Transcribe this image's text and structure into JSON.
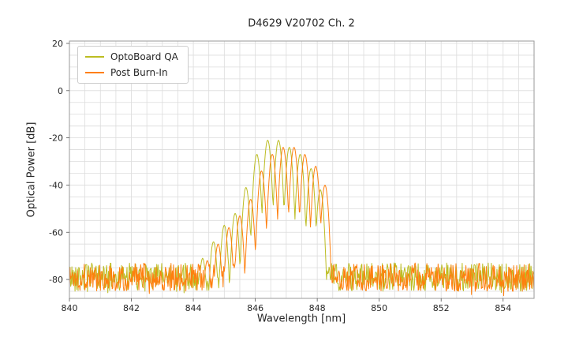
{
  "chart_data": {
    "type": "line",
    "title": "D4629 V20702 Ch. 2",
    "xlabel": "Wavelength [nm]",
    "ylabel": "Optical Power [dB]",
    "xlim": [
      840,
      855
    ],
    "ylim": [
      -88,
      21
    ],
    "x_ticks": [
      840,
      842,
      844,
      846,
      848,
      850,
      852,
      854
    ],
    "y_ticks": [
      20,
      0,
      -20,
      -40,
      -60,
      -80
    ],
    "grid": {
      "on": true,
      "x_step_nm": 0.5,
      "y_step_db": 5
    },
    "legend": {
      "position": "upper left",
      "entries": [
        "OptoBoard QA",
        "Post Burn-In"
      ]
    },
    "sample_step_nm": 0.02,
    "lobe_format": "[center_nm, peak_db]",
    "series": [
      {
        "name": "OptoBoard QA",
        "color": "#bcbd22",
        "seed": 42,
        "noise_floor_db": -79,
        "noise_band_db": 12,
        "lobe_sharpness_db_per_nm2": 950,
        "signal_range_nm": [
          844.1,
          848.3
        ],
        "lobes": [
          [
            844.3,
            -71
          ],
          [
            844.65,
            -64
          ],
          [
            845.0,
            -57
          ],
          [
            845.35,
            -52
          ],
          [
            845.7,
            -41
          ],
          [
            846.05,
            -27
          ],
          [
            846.4,
            -21
          ],
          [
            846.75,
            -21
          ],
          [
            847.1,
            -24
          ],
          [
            847.45,
            -27
          ],
          [
            847.8,
            -33
          ],
          [
            848.1,
            -42
          ]
        ]
      },
      {
        "name": "Post Burn-In",
        "color": "#ff7f0e",
        "seed": 1337,
        "noise_floor_db": -79,
        "noise_band_db": 12,
        "lobe_sharpness_db_per_nm2": 950,
        "signal_range_nm": [
          844.3,
          848.45
        ],
        "lobes": [
          [
            844.45,
            -72
          ],
          [
            844.8,
            -65
          ],
          [
            845.15,
            -58
          ],
          [
            845.5,
            -53
          ],
          [
            845.85,
            -46
          ],
          [
            846.2,
            -34
          ],
          [
            846.55,
            -27
          ],
          [
            846.9,
            -24
          ],
          [
            847.25,
            -24
          ],
          [
            847.6,
            -27
          ],
          [
            847.95,
            -32
          ],
          [
            848.25,
            -40
          ]
        ]
      }
    ]
  }
}
